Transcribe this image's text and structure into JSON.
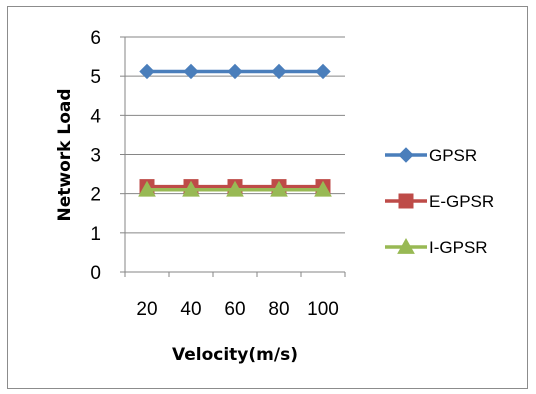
{
  "chart_data": {
    "type": "line",
    "title": "",
    "xlabel": "Velocity(m/s)",
    "ylabel": "Network  Load",
    "categories": [
      "20",
      "40",
      "60",
      "80",
      "100"
    ],
    "ylim": [
      0,
      6
    ],
    "yticks": [
      "0",
      "1",
      "2",
      "3",
      "4",
      "5",
      "6"
    ],
    "grid": true,
    "legend_position": "right",
    "series": [
      {
        "name": "GPSR",
        "values": [
          5.12,
          5.12,
          5.12,
          5.12,
          5.12
        ],
        "color": "#4a7ebb",
        "marker": "diamond"
      },
      {
        "name": "E-GPSR",
        "values": [
          2.18,
          2.18,
          2.18,
          2.18,
          2.18
        ],
        "color": "#be4b48",
        "marker": "square"
      },
      {
        "name": "I-GPSR",
        "values": [
          2.1,
          2.1,
          2.1,
          2.1,
          2.1
        ],
        "color": "#98b954",
        "marker": "triangle"
      }
    ]
  }
}
